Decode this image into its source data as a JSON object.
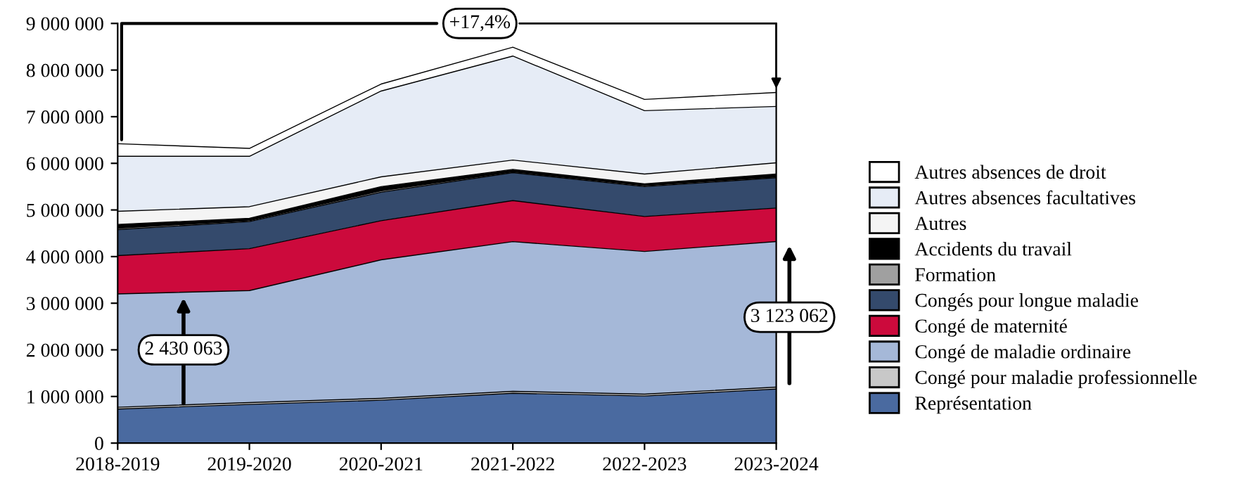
{
  "chart_data": {
    "type": "area",
    "stacked": true,
    "legend": "right",
    "grid": false,
    "categories": [
      "2018-2019",
      "2019-2020",
      "2020-2021",
      "2021-2022",
      "2022-2023",
      "2023-2024"
    ],
    "ylim": [
      0,
      9000000
    ],
    "yticks": [
      {
        "value": 0,
        "label": "0"
      },
      {
        "value": 1000000,
        "label": "1 000 000"
      },
      {
        "value": 2000000,
        "label": "2 000 000"
      },
      {
        "value": 3000000,
        "label": "3 000 000"
      },
      {
        "value": 4000000,
        "label": "4 000 000"
      },
      {
        "value": 5000000,
        "label": "5 000 000"
      },
      {
        "value": 6000000,
        "label": "6 000 000"
      },
      {
        "value": 7000000,
        "label": "7 000 000"
      },
      {
        "value": 8000000,
        "label": "8 000 000"
      },
      {
        "value": 9000000,
        "label": "9 000 000"
      }
    ],
    "series": [
      {
        "name": "Représentation",
        "color": "#4a6aa0",
        "values": [
          730000,
          830000,
          920000,
          1070000,
          1010000,
          1160000
        ]
      },
      {
        "name": "Congé pour maladie professionnelle",
        "color": "#c8c8c8",
        "values": [
          40000,
          40000,
          40000,
          40000,
          40000,
          40000
        ]
      },
      {
        "name": "Congé de maladie ordinaire",
        "color": "#a5b8d8",
        "values": [
          2430063,
          2400000,
          2970000,
          3210000,
          3060000,
          3123062
        ]
      },
      {
        "name": "Congé de maternité",
        "color": "#cc0a3c",
        "values": [
          820000,
          900000,
          840000,
          880000,
          750000,
          717000
        ]
      },
      {
        "name": "Congés pour longue maladie",
        "color": "#344a6c",
        "values": [
          560000,
          580000,
          610000,
          600000,
          640000,
          650000
        ]
      },
      {
        "name": "Formation",
        "color": "#a0a0a0",
        "values": [
          30000,
          20000,
          30000,
          20000,
          20000,
          20000
        ]
      },
      {
        "name": "Accidents du travail",
        "color": "#000000",
        "values": [
          80000,
          50000,
          90000,
          50000,
          40000,
          60000
        ]
      },
      {
        "name": "Autres",
        "color": "#f4f4f4",
        "values": [
          280000,
          250000,
          210000,
          200000,
          210000,
          240000
        ]
      },
      {
        "name": "Autres absences facultatives",
        "color": "#e6ecf6",
        "values": [
          1180000,
          1080000,
          1840000,
          2230000,
          1360000,
          1210000
        ]
      },
      {
        "name": "Autres absences de droit",
        "color": "#ffffff",
        "values": [
          270000,
          170000,
          150000,
          190000,
          240000,
          300000
        ]
      }
    ],
    "annotations": [
      {
        "text": "2 430 063",
        "x": "2018-2019",
        "y": 2000000
      },
      {
        "text": "3 123 062",
        "x": "2023-2024",
        "y": 2700000
      },
      "+17,4%"
    ]
  }
}
